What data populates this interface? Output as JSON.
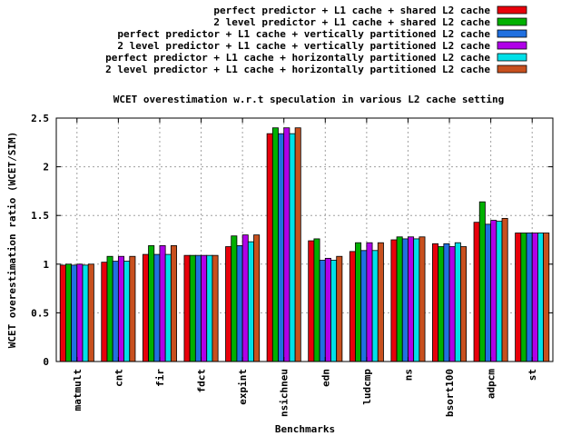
{
  "chart_data": {
    "type": "bar",
    "title": "WCET overestimation w.r.t speculation in various L2 cache setting",
    "xlabel": "Benchmarks",
    "ylabel": "WCET overestimation ratio (WCET/SIM)",
    "ylim": [
      0,
      2.5
    ],
    "yticks": [
      "0",
      "0.5",
      "1",
      "1.5",
      "2",
      "2.5"
    ],
    "grid": true,
    "legend_position": "top-right",
    "categories": [
      "matmult",
      "cnt",
      "fir",
      "fdct",
      "expint",
      "nsichneu",
      "edn",
      "ludcmp",
      "ns",
      "bsort100",
      "adpcm",
      "st"
    ],
    "series": [
      {
        "name": "perfect predictor + L1 cache + shared L2 cache",
        "color": "#e8000b",
        "values": [
          0.99,
          1.02,
          1.1,
          1.09,
          1.18,
          2.34,
          1.24,
          1.13,
          1.25,
          1.21,
          1.43,
          1.32
        ]
      },
      {
        "name": "2 level predictor + L1 cache + shared L2 cache",
        "color": "#00b000",
        "values": [
          1.0,
          1.08,
          1.19,
          1.09,
          1.29,
          2.4,
          1.26,
          1.22,
          1.28,
          1.18,
          1.64,
          1.32
        ]
      },
      {
        "name": "perfect predictor + L1 cache + vertically partitioned L2 cache",
        "color": "#2070e0",
        "values": [
          0.99,
          1.03,
          1.1,
          1.09,
          1.19,
          2.34,
          1.04,
          1.14,
          1.26,
          1.21,
          1.41,
          1.32
        ]
      },
      {
        "name": "2 level predictor + L1 cache + vertically partitioned L2 cache",
        "color": "#b000e8",
        "values": [
          1.0,
          1.08,
          1.19,
          1.09,
          1.3,
          2.4,
          1.06,
          1.22,
          1.28,
          1.18,
          1.45,
          1.32
        ]
      },
      {
        "name": "perfect predictor + L1 cache + horizontally partitioned L2 cache",
        "color": "#00e0e8",
        "values": [
          0.99,
          1.03,
          1.1,
          1.09,
          1.23,
          2.34,
          1.04,
          1.14,
          1.26,
          1.22,
          1.44,
          1.32
        ]
      },
      {
        "name": "2 level predictor + L1 cache + horizontally partitioned L2 cache",
        "color": "#c8501e",
        "values": [
          1.0,
          1.08,
          1.19,
          1.09,
          1.3,
          2.4,
          1.08,
          1.22,
          1.28,
          1.18,
          1.47,
          1.32
        ]
      }
    ]
  }
}
